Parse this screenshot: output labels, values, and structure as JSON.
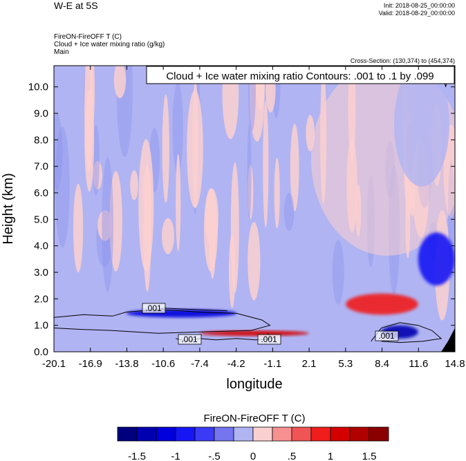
{
  "header": {
    "title": "W-E at 5S",
    "init": "Init: 2018-08-25_00:00:00",
    "valid": "Valid: 2018-08-29_00:00:00",
    "variable_title": "FireON-FireOFF T   (C)",
    "variable_subtitle": "Cloud + Ice water mixing ratio   (g/kg)",
    "variable_main": "Main",
    "cross_section": "Cross-Section: (130,374) to (454,374)"
  },
  "contour_info": "Cloud + Ice water mixing ratio Contours: .001 to .1 by .099",
  "contour_labels": [
    ".001",
    ".001",
    ".001",
    ".001"
  ],
  "colorbar": {
    "title": "FireON-FireOFF T  (C)",
    "tick_labels": [
      "-1.5",
      "-1",
      "-.5",
      "0",
      ".5",
      "1",
      "1.5"
    ],
    "colors": [
      "#00007f",
      "#0000b0",
      "#0000dd",
      "#1616f5",
      "#3b3bf5",
      "#7575f0",
      "#b0b4f2",
      "#fbd0d0",
      "#f79090",
      "#f05454",
      "#f01d1d",
      "#d40000",
      "#b00000",
      "#8a0000"
    ]
  },
  "chart_data": {
    "type": "heatmap",
    "xlabel": "longitude",
    "ylabel": "Height (km)",
    "x_ticks": [
      "-20.1",
      "-16.9",
      "-13.8",
      "-10.6",
      "-7.4",
      "-4.2",
      "-1.1",
      "2.1",
      "5.3",
      "8.4",
      "11.6",
      "14.8"
    ],
    "y_ticks": [
      "0.0",
      "1.0",
      "2.0",
      "3.0",
      "4.0",
      "5.0",
      "6.0",
      "7.0",
      "8.0",
      "9.0",
      "10.0"
    ],
    "xlim": [
      -20.1,
      14.8
    ],
    "ylim": [
      0,
      10.8
    ],
    "features": [
      {
        "x": [
          -7.4,
          2.1
        ],
        "y": [
          0.6,
          0.8
        ],
        "value": 1.0
      },
      {
        "x": [
          8.4,
          11.6
        ],
        "y": [
          0.5,
          1.0
        ],
        "value": -1.5
      },
      {
        "x": [
          -13.8,
          -4.2
        ],
        "y": [
          1.3,
          1.6
        ],
        "value": -1.2
      },
      {
        "x": [
          5.3,
          11.6
        ],
        "y": [
          1.4,
          2.2
        ],
        "value": 0.8
      },
      {
        "x": [
          11.6,
          14.8
        ],
        "y": [
          2.5,
          4.5
        ],
        "value": -0.8
      }
    ]
  }
}
